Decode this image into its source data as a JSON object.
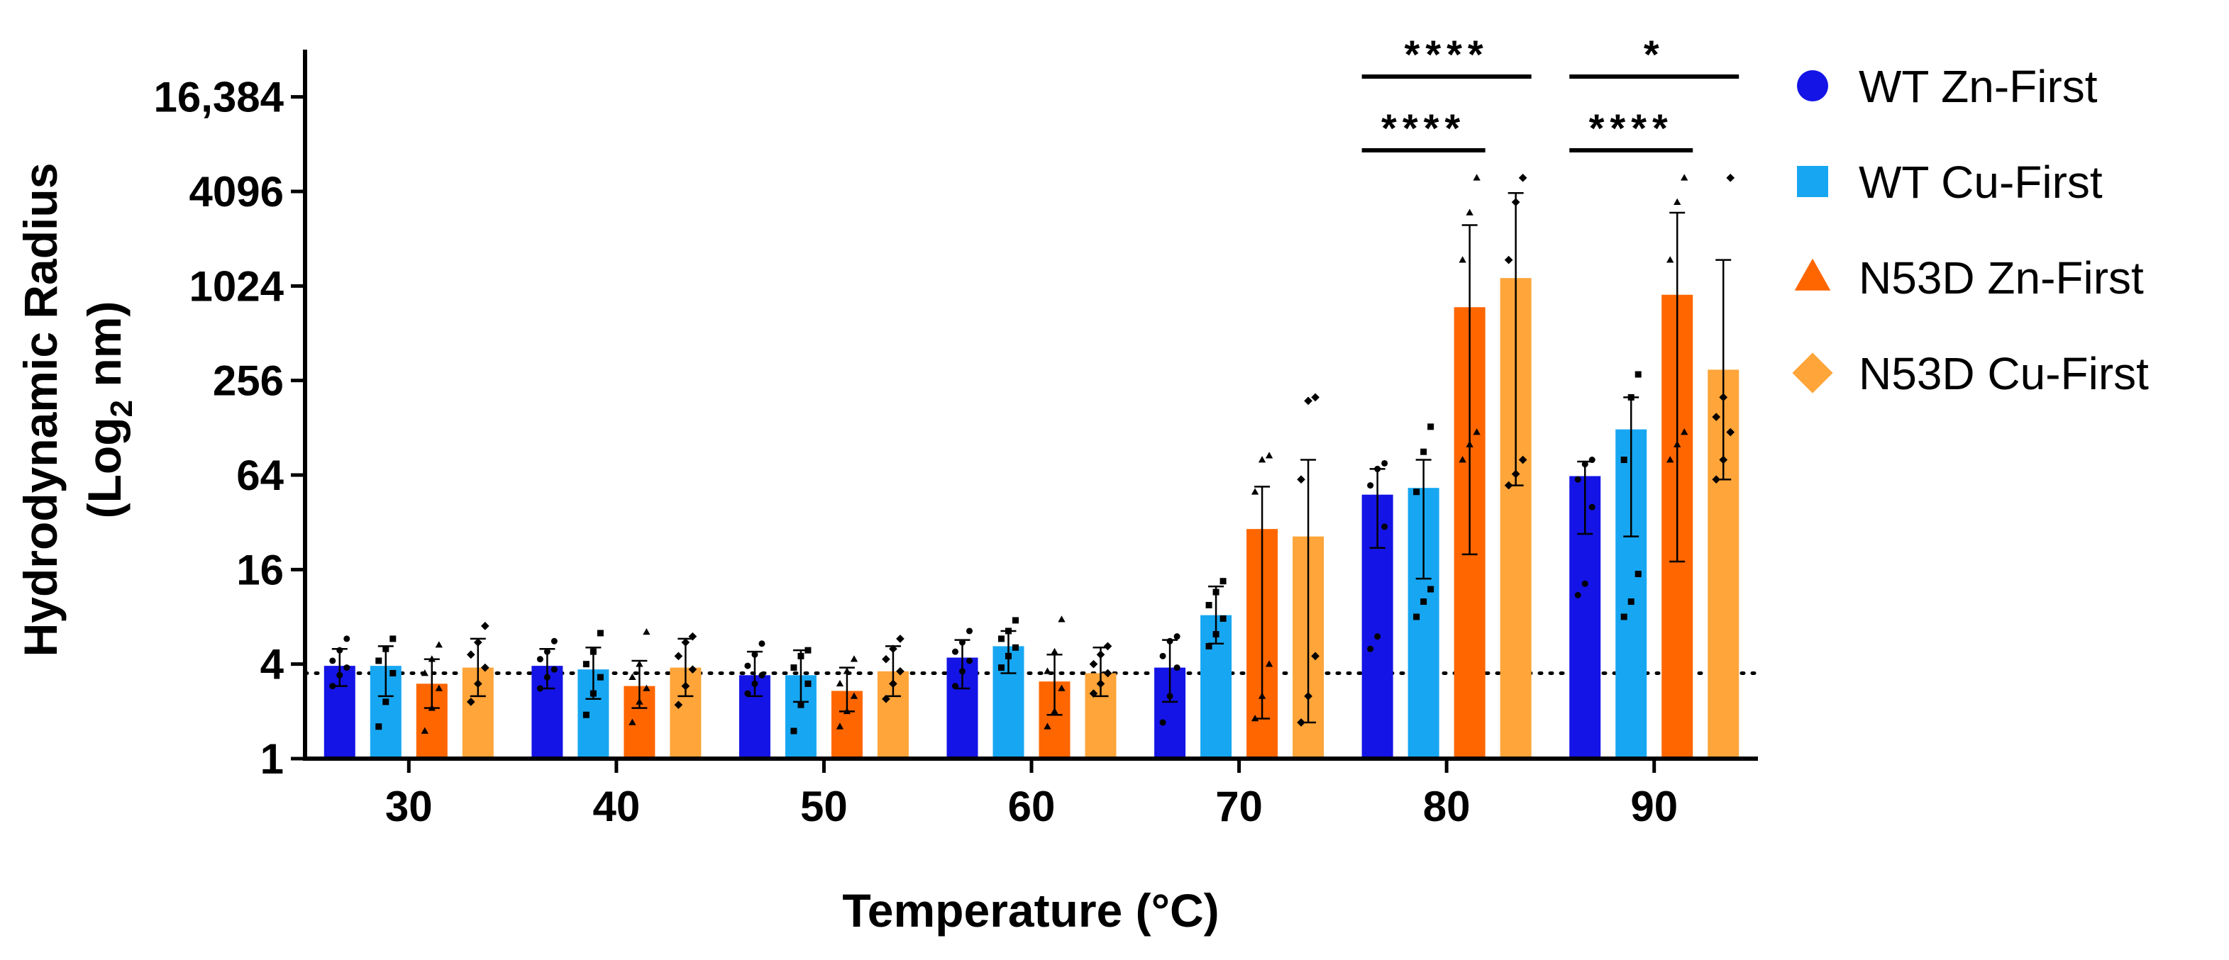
{
  "chart_data": {
    "type": "bar",
    "xlabel": "Temperature (°C)",
    "ylabel_line1": "Hydrodynamic Radius",
    "ylabel_line2_pre": "(Log",
    "ylabel_line2_sub": "2",
    "ylabel_line2_post": " nm)",
    "yscale": "log2",
    "ylim": [
      1,
      32768
    ],
    "yticks": [
      1,
      4,
      16,
      64,
      256,
      1024,
      4096,
      16384
    ],
    "ytick_labels": [
      "1",
      "4",
      "16",
      "64",
      "256",
      "1024",
      "4096",
      "16,384"
    ],
    "categories": [
      "30",
      "40",
      "50",
      "60",
      "70",
      "80",
      "90"
    ],
    "reference_line": 3.5,
    "series": [
      {
        "name": "WT Zn-First",
        "color": "#1414e6",
        "marker": "circle",
        "values": [
          3.9,
          3.9,
          3.4,
          4.4,
          3.8,
          48,
          63
        ],
        "error_low": [
          2.9,
          2.8,
          2.5,
          2.8,
          2.3,
          22,
          27
        ],
        "error_high": [
          5.0,
          5.0,
          4.8,
          5.7,
          5.7,
          70,
          78
        ],
        "points": [
          [
            2.9,
            3.4,
            3.8,
            4.2,
            4.9,
            5.8
          ],
          [
            2.8,
            3.3,
            3.7,
            4.3,
            4.8,
            5.6
          ],
          [
            2.6,
            3.0,
            3.4,
            3.9,
            4.6,
            5.4
          ],
          [
            2.9,
            3.6,
            4.2,
            4.8,
            5.5,
            6.5
          ],
          [
            1.7,
            2.5,
            3.8,
            4.5,
            5.6,
            6.0
          ],
          [
            5.0,
            6.0,
            30,
            55,
            70,
            76
          ],
          [
            11,
            13,
            40,
            60,
            75,
            80
          ]
        ]
      },
      {
        "name": "WT Cu-First",
        "color": "#17a7f2",
        "marker": "square",
        "values": [
          3.9,
          3.7,
          3.4,
          5.2,
          8.2,
          53,
          125
        ],
        "error_low": [
          2.5,
          2.4,
          2.3,
          3.5,
          5.4,
          14,
          26
        ],
        "error_high": [
          5.2,
          5.1,
          4.9,
          6.5,
          12.5,
          80,
          200
        ],
        "points": [
          [
            1.6,
            2.3,
            3.5,
            4.2,
            5.0,
            5.8
          ],
          [
            1.9,
            2.6,
            3.3,
            4.0,
            4.8,
            6.3
          ],
          [
            1.5,
            2.2,
            3.0,
            3.8,
            4.5,
            4.9
          ],
          [
            3.8,
            4.5,
            5.1,
            5.8,
            6.5,
            7.6
          ],
          [
            5.2,
            6.2,
            7.8,
            9.5,
            11.5,
            13.5
          ],
          [
            8,
            10,
            12,
            50,
            90,
            130
          ],
          [
            8,
            10,
            15,
            80,
            200,
            280
          ]
        ]
      },
      {
        "name": "N53D Zn-First",
        "color": "#ff6600",
        "marker": "triangle",
        "values": [
          3.0,
          2.9,
          2.7,
          3.1,
          29,
          750,
          900
        ],
        "error_low": [
          2.1,
          2.1,
          2.0,
          1.9,
          1.8,
          20,
          18
        ],
        "error_high": [
          4.3,
          4.2,
          3.8,
          4.6,
          54,
          2500,
          3000
        ],
        "points": [
          [
            1.5,
            2.1,
            2.8,
            3.5,
            4.3,
            5.3
          ],
          [
            1.7,
            2.3,
            2.8,
            3.3,
            4.0,
            6.4
          ],
          [
            1.6,
            2.0,
            2.5,
            3.0,
            3.6,
            4.3
          ],
          [
            1.6,
            2.0,
            2.8,
            3.6,
            4.8,
            7.7
          ],
          [
            1.8,
            2.5,
            4.0,
            50,
            80,
            85
          ],
          [
            80,
            100,
            120,
            1500,
            3000,
            5000
          ],
          [
            80,
            100,
            120,
            1500,
            3500,
            5000
          ]
        ]
      },
      {
        "name": "N53D Cu-First",
        "color": "#ffa53a",
        "marker": "diamond",
        "values": [
          3.8,
          3.8,
          3.6,
          3.5,
          26,
          1150,
          300
        ],
        "error_low": [
          2.5,
          2.5,
          2.5,
          2.5,
          1.7,
          55,
          60
        ],
        "error_high": [
          5.8,
          5.8,
          5.2,
          5.1,
          80,
          4000,
          1500
        ],
        "points": [
          [
            2.3,
            3.0,
            3.8,
            4.6,
            5.5,
            7.0
          ],
          [
            2.2,
            2.9,
            3.7,
            4.5,
            5.5,
            6.0
          ],
          [
            2.4,
            3.0,
            3.6,
            4.3,
            5.0,
            5.8
          ],
          [
            2.6,
            3.0,
            3.5,
            4.0,
            4.6,
            5.2
          ],
          [
            1.7,
            2.5,
            4.5,
            60,
            190,
            200
          ],
          [
            55,
            65,
            80,
            1500,
            3500,
            5000
          ],
          [
            60,
            80,
            120,
            150,
            200,
            5000
          ]
        ]
      }
    ],
    "significance": [
      {
        "label": "****",
        "category": "80",
        "from_series": 0,
        "to_series": 2,
        "level": 1
      },
      {
        "label": "****",
        "category": "80",
        "from_series": 0,
        "to_series": 3,
        "level": 2
      },
      {
        "label": "****",
        "category": "90",
        "from_series": 0,
        "to_series": 2,
        "level": 1
      },
      {
        "label": "*",
        "category": "90",
        "from_series": 0,
        "to_series": 3,
        "level": 2
      }
    ],
    "legend_position": "right"
  }
}
